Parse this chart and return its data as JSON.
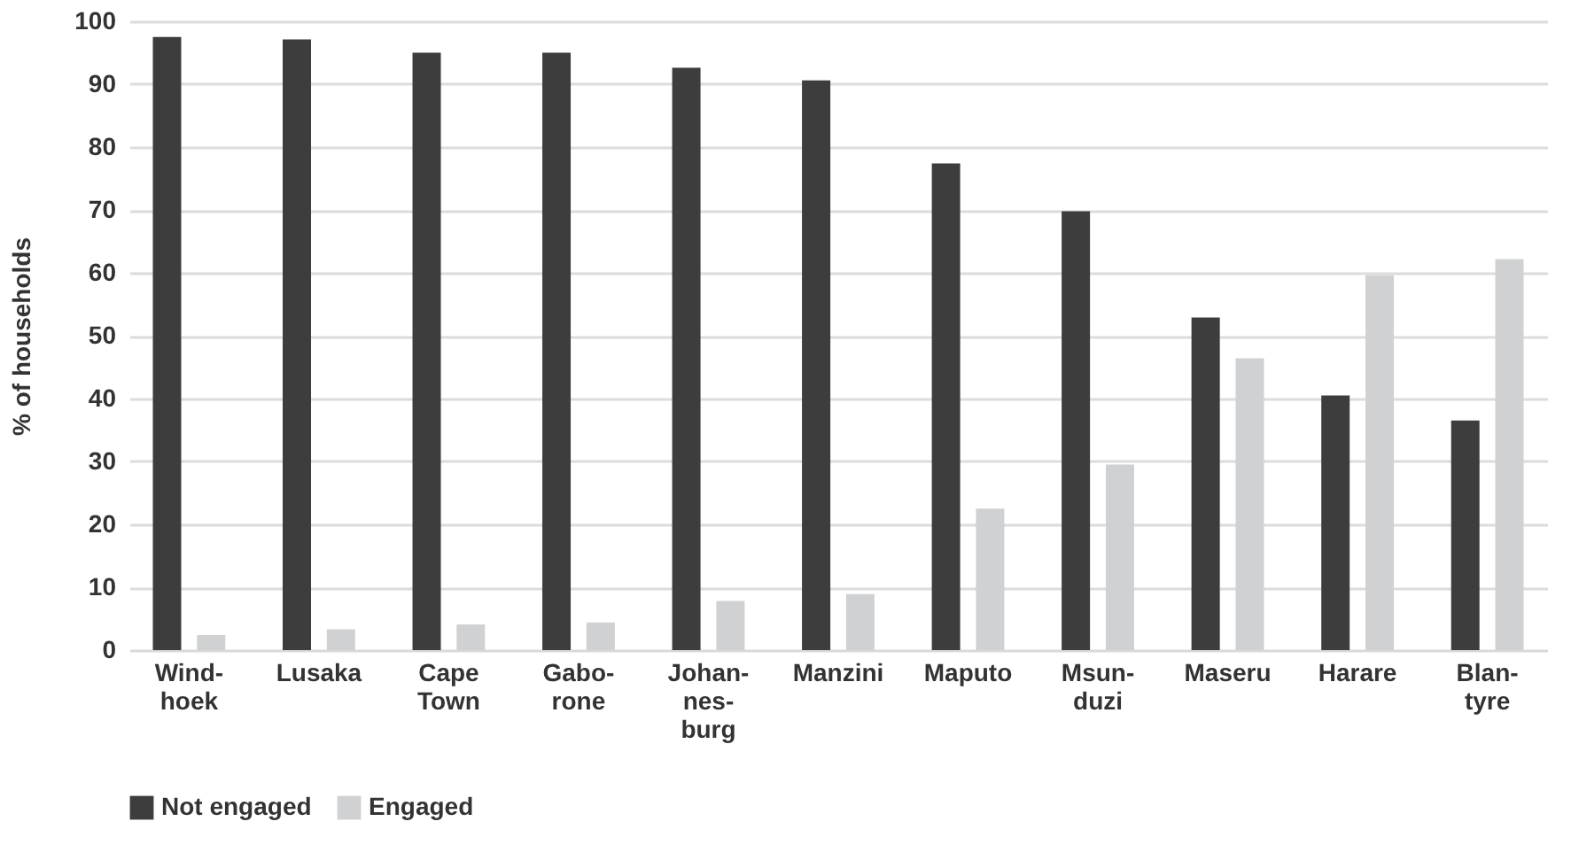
{
  "chart_data": {
    "type": "bar",
    "ylabel": "% of households",
    "categories": [
      "Wind-\nhoek",
      "Lusaka",
      "Cape\nTown",
      "Gabo-\nrone",
      "Johan-\nnes-\nburg",
      "Manzini",
      "Maputo",
      "Msun-\nduzi",
      "Maseru",
      "Harare",
      "Blan-\ntyre"
    ],
    "series": [
      {
        "name": "Not engaged",
        "color": "#3d3d3d",
        "values": [
          97.5,
          97.1,
          95.0,
          95.0,
          92.6,
          90.6,
          77.4,
          69.8,
          52.9,
          40.5,
          36.5
        ]
      },
      {
        "name": "Engaged",
        "color": "#d0d1d3",
        "values": [
          2.4,
          3.3,
          4.1,
          4.4,
          7.8,
          8.9,
          22.5,
          29.5,
          46.4,
          59.6,
          62.2
        ]
      }
    ],
    "ylim": [
      0,
      100
    ],
    "yticks": [
      0,
      10,
      20,
      30,
      40,
      50,
      60,
      70,
      80,
      90,
      100
    ],
    "grid": "y",
    "legend": "bottom"
  }
}
